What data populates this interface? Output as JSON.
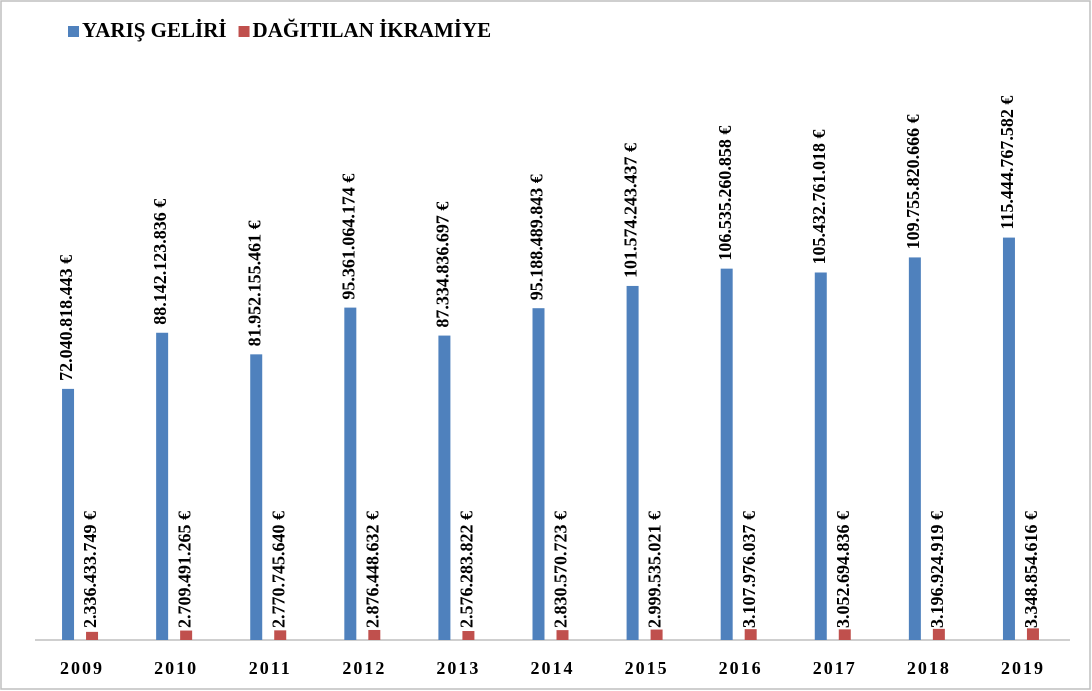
{
  "chart_data": {
    "type": "bar",
    "categories": [
      "2009",
      "2010",
      "2011",
      "2012",
      "2013",
      "2014",
      "2015",
      "2016",
      "2017",
      "2018",
      "2019"
    ],
    "series": [
      {
        "name": "YARIŞ GELİRİ",
        "color": "#4f81bd",
        "values": [
          72040818443,
          88142123836,
          81952155461,
          95361064174,
          87334836697,
          95188489843,
          101574243437,
          106535260858,
          105432761018,
          109755820666,
          115444767582
        ],
        "value_labels": [
          "72.040.818.443 €",
          "88.142.123.836 €",
          "81.952.155.461 €",
          "95.361.064.174 €",
          "87.334.836.697 €",
          "95.188.489.843 €",
          "101.574.243.437 €",
          "106.535.260.858 €",
          "105.432.761.018 €",
          "109.755.820.666 €",
          "115.444.767.582 €"
        ]
      },
      {
        "name": "DAĞITILAN İKRAMİYE",
        "color": "#c0504d",
        "values": [
          2336433749,
          2709491265,
          2770745640,
          2876448632,
          2576283822,
          2830570723,
          2999535021,
          3107976037,
          3052694836,
          3196924919,
          3348854616
        ],
        "value_labels": [
          "2.336.433.749 €",
          "2.709.491.265 €",
          "2.770.745.640 €",
          "2.876.448.632 €",
          "2.576.283.822 €",
          "2.830.570.723 €",
          "2.999.535.021 €",
          "3.107.976.037 €",
          "3.052.694.836 €",
          "3.196.924.919 €",
          "3.348.854.616 €"
        ]
      }
    ],
    "ylim": [
      0,
      175000000000
    ],
    "legend": "top-left"
  }
}
